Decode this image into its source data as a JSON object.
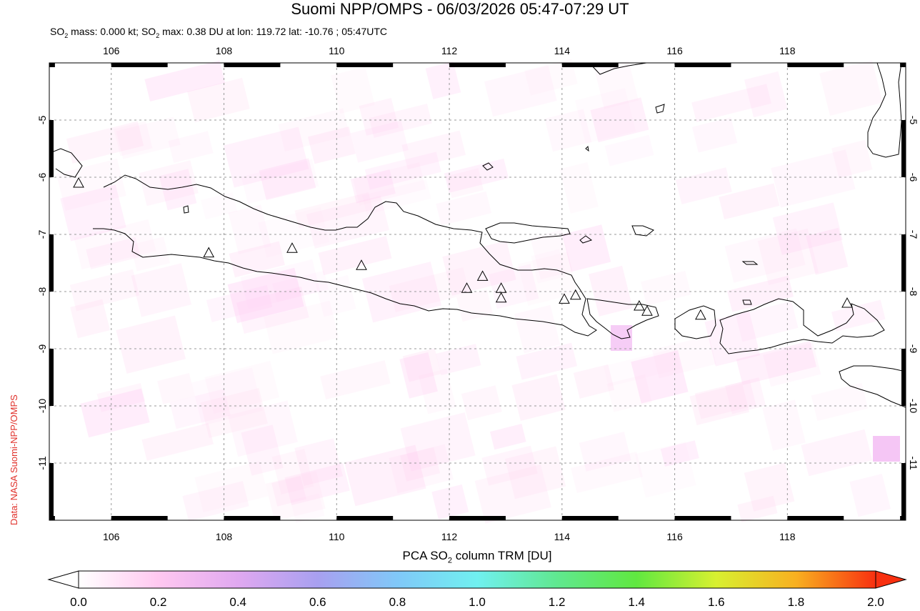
{
  "header": {
    "title": "Suomi NPP/OMPS - 06/03/2026 05:47-07:29 UT",
    "stats": {
      "mass_prefix": "SO",
      "mass_sub": "2",
      "mass_text": " mass: 0.000 kt; SO",
      "max_sub": "2",
      "max_text": " max: 0.38 DU at lon: 119.72 lat: -10.76 ; 05:47UTC"
    }
  },
  "credit": "Data: NASA Suomi-NPP/OMPS",
  "map": {
    "lon_ticks": [
      "106",
      "108",
      "110",
      "112",
      "114",
      "116",
      "118"
    ],
    "lat_ticks": [
      "-5",
      "-6",
      "-7",
      "-8",
      "-9",
      "-10",
      "-11"
    ],
    "lon_range": [
      104.9,
      120.1
    ],
    "lat_range": [
      -12.0,
      -4.0
    ],
    "grid": true,
    "volcanoes": [
      {
        "lon": 105.42,
        "lat": -6.1
      },
      {
        "lon": 107.73,
        "lat": -7.32
      },
      {
        "lon": 109.21,
        "lat": -7.24
      },
      {
        "lon": 110.44,
        "lat": -7.54
      },
      {
        "lon": 112.31,
        "lat": -7.94
      },
      {
        "lon": 112.59,
        "lat": -7.73
      },
      {
        "lon": 112.92,
        "lat": -7.94
      },
      {
        "lon": 112.92,
        "lat": -8.11
      },
      {
        "lon": 114.04,
        "lat": -8.13
      },
      {
        "lon": 114.24,
        "lat": -8.06
      },
      {
        "lon": 115.37,
        "lat": -8.25
      },
      {
        "lon": 115.51,
        "lat": -8.34
      },
      {
        "lon": 116.46,
        "lat": -8.41
      },
      {
        "lon": 119.06,
        "lat": -8.2
      }
    ]
  },
  "colorbar": {
    "label_prefix": "PCA SO",
    "label_sub": "2",
    "label_suffix": " column TRM [DU]",
    "ticks": [
      "0.0",
      "0.2",
      "0.4",
      "0.6",
      "0.8",
      "1.0",
      "1.2",
      "1.4",
      "1.6",
      "1.8",
      "2.0"
    ],
    "colors": [
      "#ffffff",
      "#ffc8f0",
      "#e0a8f0",
      "#a8a0f0",
      "#80c8f8",
      "#70f0f0",
      "#60e890",
      "#60e840",
      "#d8f030",
      "#f8b020",
      "#f83010"
    ]
  }
}
